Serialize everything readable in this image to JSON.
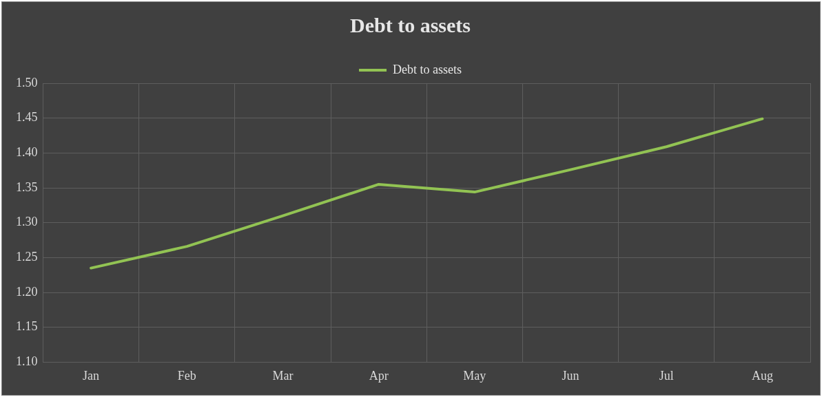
{
  "chart_data": {
    "type": "line",
    "title": "Debt to assets",
    "categories": [
      "Jan",
      "Feb",
      "Mar",
      "Apr",
      "May",
      "Jun",
      "Jul",
      "Aug"
    ],
    "series": [
      {
        "name": "Debt to assets",
        "color": "#92c353",
        "values": [
          1.235,
          1.266,
          1.31,
          1.355,
          1.344,
          1.376,
          1.409,
          1.449
        ]
      }
    ],
    "ylim": [
      1.1,
      1.5
    ],
    "yticks": [
      {
        "value": 1.1,
        "label": "1.10"
      },
      {
        "value": 1.15,
        "label": "1.15"
      },
      {
        "value": 1.2,
        "label": "1.20"
      },
      {
        "value": 1.25,
        "label": "1.25"
      },
      {
        "value": 1.3,
        "label": "1.30"
      },
      {
        "value": 1.35,
        "label": "1.35"
      },
      {
        "value": 1.4,
        "label": "1.40"
      },
      {
        "value": 1.45,
        "label": "1.45"
      },
      {
        "value": 1.5,
        "label": "1.50"
      }
    ],
    "grid": true,
    "legend": "top",
    "marker": "none",
    "line_style": "solid"
  }
}
